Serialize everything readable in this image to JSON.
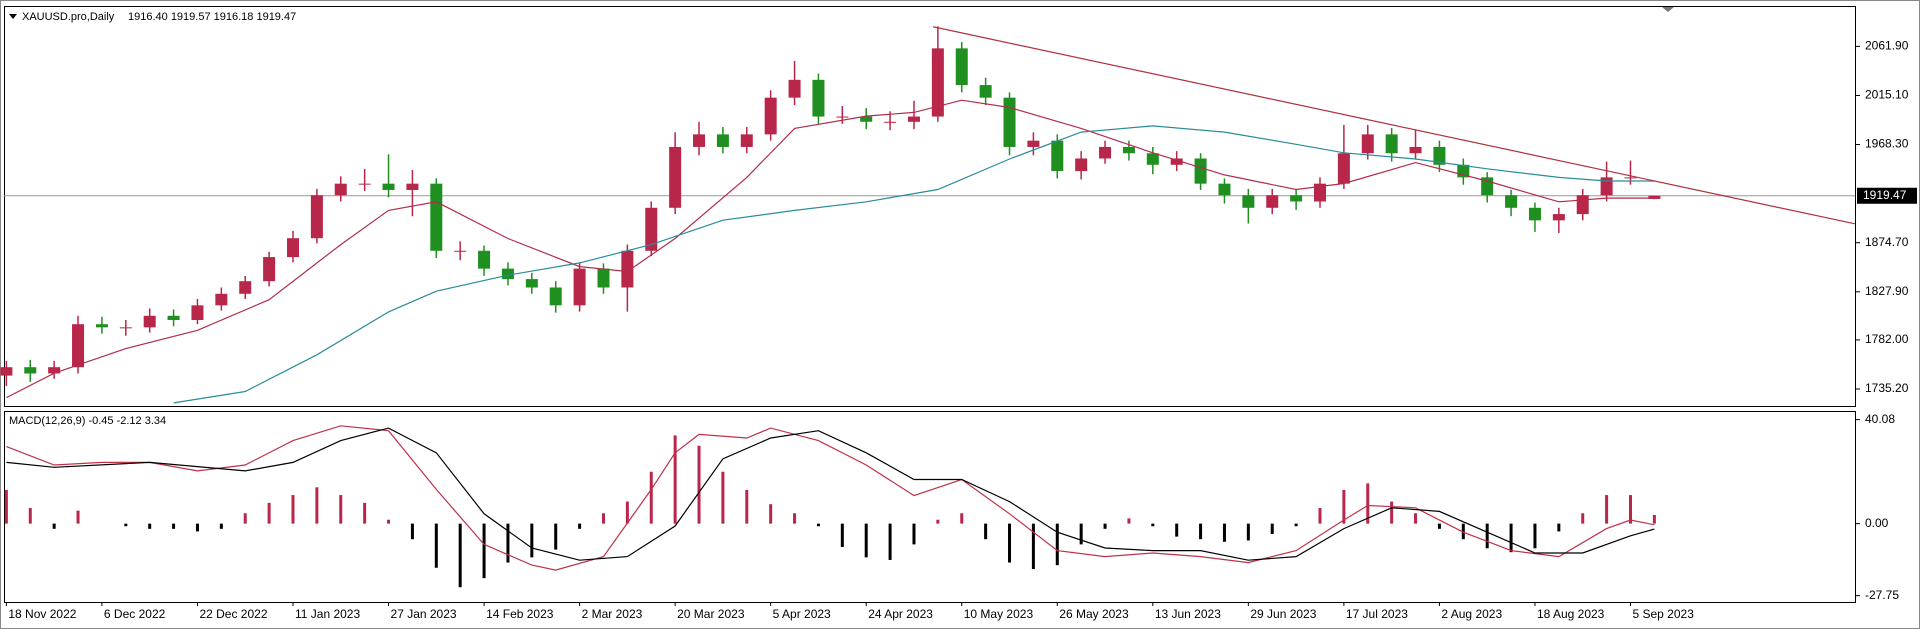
{
  "chart_data": [
    {
      "type": "candlestick",
      "title": "XAUUSD.pro,Daily",
      "subtitle": "1916.40 1919.57 1916.18 1919.47",
      "categories": [
        "18 Nov 2022",
        null,
        null,
        null,
        "6 Dec 2022",
        null,
        null,
        null,
        "22 Dec 2022",
        null,
        null,
        null,
        "11 Jan 2023",
        null,
        null,
        null,
        "27 Jan 2023",
        null,
        null,
        null,
        "14 Feb 2023",
        null,
        null,
        null,
        "2 Mar 2023",
        null,
        null,
        null,
        "20 Mar 2023",
        null,
        null,
        null,
        "5 Apr 2023",
        null,
        null,
        null,
        "24 Apr 2023",
        null,
        null,
        null,
        "10 May 2023",
        null,
        null,
        null,
        "26 May 2023",
        null,
        null,
        null,
        "13 Jun 2023",
        null,
        null,
        null,
        "29 Jun 2023",
        null,
        null,
        null,
        "17 Jul 2023",
        null,
        null,
        null,
        "2 Aug 2023",
        null,
        null,
        null,
        "18 Aug 2023",
        null,
        null,
        null,
        "5 Sep 2023",
        null
      ],
      "open": [
        1748,
        1756,
        1750,
        1756,
        1797,
        1794,
        1794,
        1805,
        1801,
        1815,
        1826,
        1838,
        1861,
        1879,
        1920,
        1931,
        1931,
        1925,
        1931,
        1867,
        1867,
        1850,
        1840,
        1832,
        1815,
        1850,
        1832,
        1867,
        1908,
        1966,
        1978,
        1966,
        1978,
        2013,
        2030,
        1995,
        1995,
        1990,
        1990,
        1995,
        2060,
        2025,
        2013,
        1966,
        1972,
        1943,
        1955,
        1966,
        1960,
        1949,
        1955,
        1931,
        1920,
        1908,
        1920,
        1914,
        1931,
        1960,
        1978,
        1960,
        1966,
        1949,
        1937,
        1920,
        1908,
        1896,
        1902,
        1920,
        1937,
        1916.4
      ],
      "high": [
        1762,
        1763,
        1762,
        1805,
        1804,
        1801,
        1812,
        1811,
        1821,
        1832,
        1843,
        1866,
        1886,
        1926,
        1938,
        1945,
        1959,
        1944,
        1936,
        1876,
        1872,
        1856,
        1846,
        1838,
        1856,
        1855,
        1873,
        1914,
        1980,
        1990,
        1985,
        1985,
        2020,
        2048,
        2036,
        2005,
        2003,
        2000,
        2010,
        2081,
        2066,
        2032,
        2018,
        1980,
        1978,
        1962,
        1972,
        1972,
        1966,
        1962,
        1960,
        1936,
        1926,
        1926,
        1926,
        1937,
        1987,
        1987,
        1984,
        1982,
        1972,
        1955,
        1942,
        1925,
        1913,
        1908,
        1926,
        1952,
        1953,
        1919.57
      ],
      "low": [
        1738,
        1742,
        1745,
        1750,
        1788,
        1786,
        1789,
        1795,
        1797,
        1810,
        1821,
        1833,
        1856,
        1874,
        1914,
        1924,
        1918,
        1900,
        1860,
        1858,
        1843,
        1834,
        1826,
        1808,
        1809,
        1826,
        1809,
        1862,
        1902,
        1958,
        1960,
        1960,
        1972,
        2006,
        1988,
        1988,
        1983,
        1982,
        1983,
        1990,
        2018,
        2006,
        1958,
        1958,
        1936,
        1935,
        1950,
        1953,
        1940,
        1943,
        1925,
        1912,
        1893,
        1902,
        1906,
        1908,
        1926,
        1954,
        1952,
        1954,
        1942,
        1930,
        1913,
        1900,
        1885,
        1884,
        1896,
        1914,
        1930,
        1916.18
      ],
      "close": [
        1756,
        1750,
        1756,
        1797,
        1794,
        1794,
        1805,
        1801,
        1815,
        1826,
        1838,
        1861,
        1879,
        1920,
        1931,
        1931,
        1925,
        1931,
        1867,
        1867,
        1850,
        1840,
        1832,
        1815,
        1850,
        1832,
        1867,
        1908,
        1966,
        1978,
        1966,
        1978,
        2013,
        2030,
        1995,
        1995,
        1990,
        1990,
        1995,
        2060,
        2025,
        2013,
        1966,
        1972,
        1943,
        1955,
        1966,
        1960,
        1949,
        1955,
        1931,
        1920,
        1908,
        1920,
        1914,
        1931,
        1960,
        1978,
        1960,
        1966,
        1949,
        1937,
        1920,
        1908,
        1896,
        1902,
        1920,
        1937,
        1937,
        1919.47
      ],
      "up_color": "#b8264a",
      "down_color": "#1f8f1f",
      "xlim": [
        -0.1,
        77.4
      ],
      "ylim": [
        1719,
        2100.4
      ],
      "yticks": [
        {
          "value": 1735.2,
          "label": "1735.20"
        },
        {
          "value": 1782,
          "label": "1782.00"
        },
        {
          "value": 1827.9,
          "label": "1827.90"
        },
        {
          "value": 1874.7,
          "label": "1874.70"
        },
        {
          "value": 1968.3,
          "label": "1968.30"
        },
        {
          "value": 2015.1,
          "label": "2015.10"
        },
        {
          "value": 2061.9,
          "label": "2061.90"
        }
      ],
      "current_price": {
        "value": 1919.47,
        "label": "1919.47"
      },
      "lines": [
        {
          "color": "#b22d4c",
          "x": [
            0,
            2,
            5,
            8,
            11,
            14,
            16,
            18,
            21,
            24,
            26,
            28,
            31,
            33,
            36,
            38,
            40,
            42,
            45,
            48,
            51,
            54,
            56,
            59,
            62,
            65,
            67,
            69
          ],
          "values": [
            1727,
            1750.3,
            1773.7,
            1791.2,
            1820.4,
            1872.9,
            1905.5,
            1913.7,
            1878.7,
            1851.9,
            1847.2,
            1878.7,
            1937,
            1983.7,
            1995.4,
            1998.9,
            2010.6,
            2003.6,
            1983.7,
            1960.4,
            1939.4,
            1925.4,
            1931.2,
            1951.1,
            1933.5,
            1913.7,
            1917.2,
            1917.2
          ]
        },
        {
          "color": "#2a8c99",
          "x": [
            7,
            10,
            13,
            16,
            18,
            21,
            24,
            27,
            30,
            33,
            36,
            39,
            42,
            45,
            48,
            51,
            54,
            56,
            59,
            62,
            65,
            67,
            69
          ],
          "values": [
            1722,
            1732.8,
            1767.8,
            1808.7,
            1828.5,
            1843.7,
            1855.4,
            1872.9,
            1896.2,
            1905.5,
            1913.7,
            1925.4,
            1954.5,
            1980.2,
            1986.1,
            1980.2,
            1968.5,
            1960.4,
            1954.5,
            1945.2,
            1937,
            1933.5,
            1933.5
          ]
        }
      ],
      "trendline": {
        "color": "#b0303e",
        "x": [
          38.8,
          77.4
        ],
        "values": [
          2080.6,
          1892.7
        ]
      }
    },
    {
      "type": "macd",
      "title": "MACD(12,26,9) -0.45 -2.12 3.34",
      "histogram": {
        "values": [
          13,
          6,
          -2,
          5,
          0,
          -1,
          -2,
          -2,
          -3,
          -2,
          4,
          8,
          11,
          14,
          11,
          8,
          1.5,
          -6,
          -17,
          -24.5,
          -21,
          -15,
          -13,
          -10,
          -2,
          4,
          8.5,
          20,
          34,
          30,
          20,
          13,
          7.5,
          4,
          -1,
          -9,
          -13,
          -14,
          -8,
          1.5,
          4,
          -6,
          -15,
          -17.5,
          -16,
          -8,
          -2,
          2,
          -1,
          -5,
          -6,
          -7,
          -6.5,
          -4,
          -1,
          6,
          13,
          15.5,
          8.5,
          4,
          -2,
          -6,
          -9.5,
          -11,
          -9.5,
          -3,
          4,
          11,
          11,
          3.34
        ],
        "up_color": "#b8264a",
        "down_color": "#000000"
      },
      "lines": [
        {
          "color": "#c0304a",
          "x": [
            0,
            2,
            4,
            6,
            8,
            10,
            12,
            14,
            16,
            18,
            20,
            22,
            23,
            25,
            27,
            28,
            29,
            31,
            32,
            34,
            36,
            38,
            40,
            42,
            44,
            46,
            48,
            50,
            52,
            54,
            56,
            57,
            59,
            61,
            63,
            65,
            67,
            68,
            69
          ],
          "values": [
            29.7,
            22.6,
            23.6,
            23.6,
            20.3,
            22.6,
            32,
            37.7,
            35.8,
            13.2,
            -8,
            -16,
            -17.9,
            -12.7,
            13.2,
            27.3,
            34.4,
            33,
            36.8,
            32,
            22.6,
            10.8,
            17,
            3.8,
            -10.4,
            -12.7,
            -11.3,
            -12.7,
            -15,
            -10.4,
            1.4,
            7,
            6.1,
            -3.3,
            -10.4,
            -12.7,
            -1.9,
            1.4,
            -0.45
          ]
        },
        {
          "color": "#000000",
          "x": [
            0,
            2,
            6,
            10,
            12,
            14,
            16,
            18,
            20,
            22,
            24,
            26,
            28,
            30,
            32,
            34,
            36,
            38,
            40,
            42,
            44,
            46,
            48,
            50,
            52,
            54,
            56,
            58,
            60,
            62,
            64,
            66,
            68,
            69
          ],
          "values": [
            23.6,
            21.7,
            23.6,
            20.3,
            23.6,
            32,
            36.8,
            27.3,
            3.8,
            -9.4,
            -14.1,
            -12.7,
            -0.9,
            25,
            33,
            35.8,
            27.3,
            17,
            17,
            8.5,
            -3.3,
            -9.4,
            -10.4,
            -10.4,
            -14.1,
            -12.7,
            -1.9,
            6.1,
            4.7,
            -3.3,
            -11.3,
            -11.3,
            -4.7,
            -2.12
          ]
        }
      ],
      "xlim": [
        -0.1,
        77.4
      ],
      "ylim": [
        -30.2,
        43.4
      ],
      "yticks": [
        40.08,
        {
          "value": 0,
          "label": "0.00"
        },
        -27.75
      ]
    }
  ]
}
